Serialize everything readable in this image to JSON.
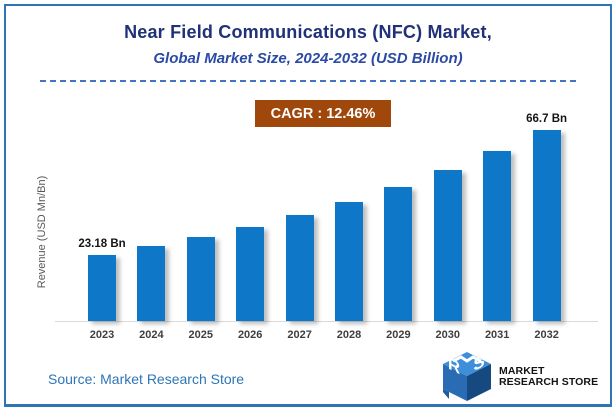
{
  "header": {
    "title": "Near Field Communications (NFC) Market,",
    "subtitle": "Global Market Size, 2024-2032 (USD Billion)"
  },
  "cagr_badge": {
    "label": "CAGR : 12.46%",
    "bg_color": "#A0470C",
    "text_color": "#FFFFFF"
  },
  "chart_data": {
    "type": "bar",
    "title": "Near Field Communications (NFC) Market, Global Market Size, 2024-2032 (USD Billion)",
    "categories": [
      "2023",
      "2024",
      "2025",
      "2026",
      "2027",
      "2028",
      "2029",
      "2030",
      "2031",
      "2032"
    ],
    "values": [
      23.18,
      26.07,
      29.32,
      32.97,
      37.08,
      41.7,
      46.89,
      52.74,
      59.31,
      66.7
    ],
    "value_labels": [
      "23.18 Bn",
      "",
      "",
      "",
      "",
      "",
      "",
      "",
      "",
      "66.7 Bn"
    ],
    "cagr": "12.46%",
    "xlabel": "",
    "ylabel": "Revenue (USD Mn/Bn)",
    "ylim": [
      0,
      70
    ],
    "grid": false,
    "legend": "none",
    "bar_color": "#0E77C8"
  },
  "footer": {
    "source": "Source: Market Research Store",
    "logo_line1": "MARKET",
    "logo_line2": "RESEARCH STORE",
    "logo_icon": "mrs-cube-icon"
  },
  "colors": {
    "frame_border": "#2E75B6",
    "title": "#1F3179",
    "subtitle": "#2B4AA5",
    "dashed_line": "#4472C4",
    "axis_text": "#3F3F3F",
    "source_text": "#2E75B6"
  }
}
